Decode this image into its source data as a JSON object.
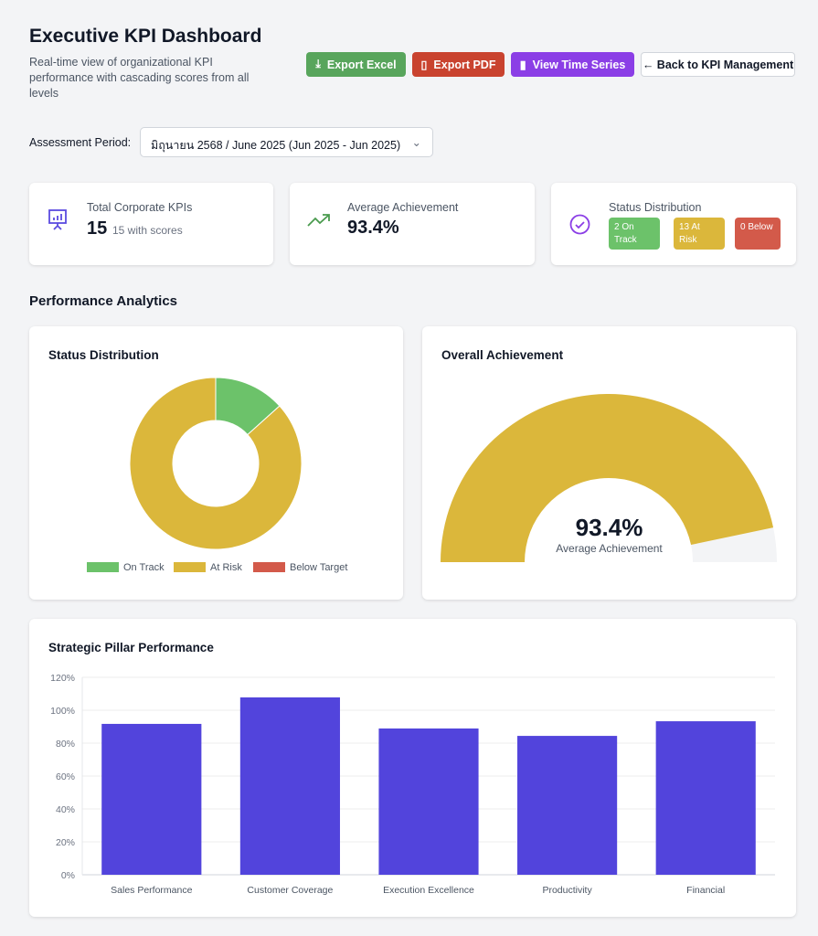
{
  "header": {
    "title": "Executive KPI Dashboard",
    "subtitle": "Real-time view of organizational KPI performance with cascading scores from all levels"
  },
  "toolbar": {
    "export_excel": "Export Excel",
    "export_pdf": "Export PDF",
    "time_series": "View Time Series",
    "back": "← Back to KPI Management"
  },
  "period": {
    "label": "Assessment Period:",
    "value": "มิถุนายน 2568 / June 2025 (Jun 2025 - Jun 2025)"
  },
  "stats": {
    "total": {
      "label": "Total Corporate KPIs",
      "value": "15",
      "note": "15 with scores"
    },
    "average": {
      "label": "Average Achievement",
      "value": "93.4%"
    },
    "status": {
      "label": "Status Distribution",
      "on_track": "2 On Track",
      "at_risk": "13 At Risk",
      "below": "0 Below"
    }
  },
  "colors": {
    "on_track": "#6cc26a",
    "at_risk": "#dbb73b",
    "below": "#d35a4a",
    "bar": "#5244dc"
  },
  "section_title": "Performance Analytics",
  "chart_data": [
    {
      "type": "pie",
      "title": "Status Distribution",
      "categories": [
        "On Track",
        "At Risk",
        "Below Target"
      ],
      "values": [
        2,
        13,
        0
      ],
      "legend": "bottom"
    },
    {
      "type": "gauge",
      "title": "Overall Achievement",
      "value": 93.4,
      "max": 100,
      "value_label": "93.4%",
      "caption": "Average Achievement"
    },
    {
      "type": "bar",
      "title": "Strategic Pillar Performance",
      "categories": [
        "Sales Performance",
        "Customer Coverage",
        "Execution Excellence",
        "Productivity",
        "Financial"
      ],
      "values": [
        91.7,
        107.8,
        88.9,
        84.4,
        93.3
      ],
      "ylim": [
        0,
        120
      ],
      "yticks": [
        "0%",
        "20%",
        "40%",
        "60%",
        "80%",
        "100%",
        "120%"
      ],
      "grid": true
    }
  ]
}
